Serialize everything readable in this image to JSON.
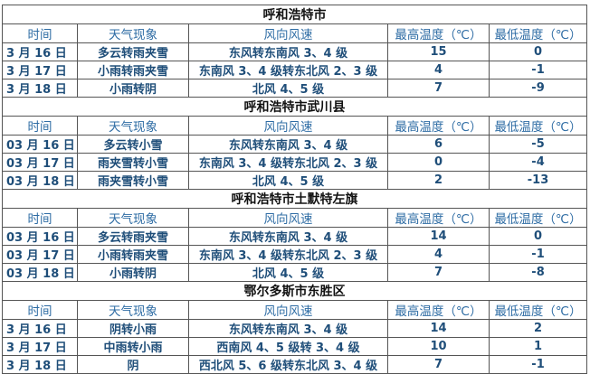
{
  "headers": [
    "时间",
    "天气现象",
    "风向风速",
    "最高温度（℃）",
    "最低温度（℃）"
  ],
  "colors": {
    "header_text": "#2e6ca4",
    "data_text": "#1f4e79",
    "title_text": "#111111",
    "border": "#555555"
  },
  "sections": [
    {
      "title": "呼和浩特市",
      "rows": [
        [
          "3 月 16 日",
          "多云转雨夹雪",
          "东风转东南风 3、4 级",
          "15",
          "0"
        ],
        [
          "3 月 17 日",
          "小雨转雨夹雪",
          "东南风 3、4 级转东北风 2、3 级",
          "4",
          "-1"
        ],
        [
          "3 月 18 日",
          "小雨转阴",
          "北风 4、5 级",
          "7",
          "-9"
        ]
      ]
    },
    {
      "title": "呼和浩特市武川县",
      "rows": [
        [
          "03 月 16 日",
          "多云转小雪",
          "东风转东南风 3、4 级",
          "6",
          "-5"
        ],
        [
          "03 月 17 日",
          "雨夹雪转小雪",
          "东南风 3、4 级转东北风 2、3 级",
          "0",
          "-4"
        ],
        [
          "03 月 18 日",
          "雨夹雪转小雪",
          "北风 4、5 级",
          "2",
          "-13"
        ]
      ]
    },
    {
      "title": "呼和浩特市土默特左旗",
      "rows": [
        [
          "03 月 16 日",
          "多云转雨夹雪",
          "东风转东南风 3、4 级",
          "14",
          "0"
        ],
        [
          "03 月 17 日",
          "小雨转雨夹雪",
          "东南风 3、4 级转东北风 2、3 级",
          "4",
          "-1"
        ],
        [
          "03 月 18 日",
          "小雨转阴",
          "北风 4、5 级",
          "7",
          "-8"
        ]
      ]
    },
    {
      "title": "鄂尔多斯市东胜区",
      "rows": [
        [
          "3 月 16 日",
          "阴转小雨",
          "东风转东南风 3、4 级",
          "14",
          "2"
        ],
        [
          "3 月 17 日",
          "中雨转小雨",
          "西南风 4、5 级转 3、4 级",
          "10",
          "1"
        ],
        [
          "3 月 18 日",
          "阴",
          "西北风 5、6 级转东北风 3、4 级",
          "7",
          "-1"
        ]
      ]
    }
  ]
}
